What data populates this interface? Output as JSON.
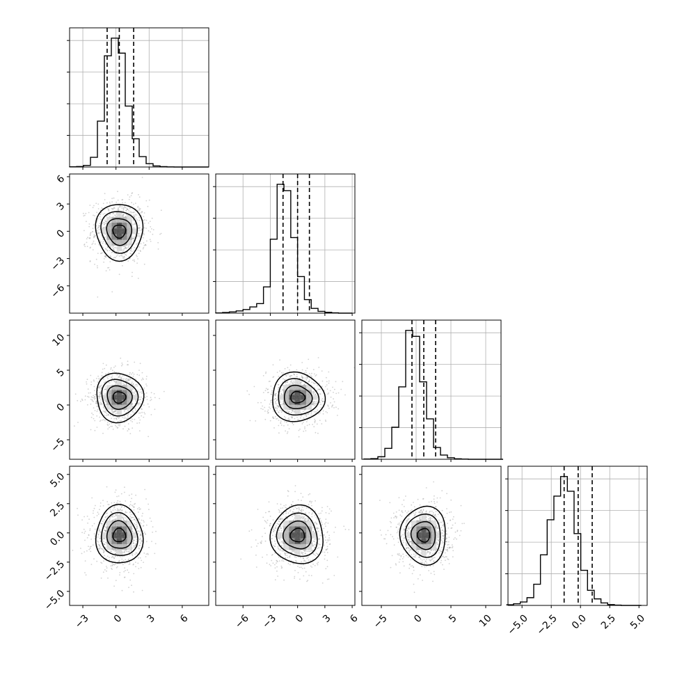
{
  "chart_data": {
    "type": "corner",
    "description_note": "",
    "variables": [
      {
        "histogram": {
          "bin_edges_range": [
            -4.2,
            8.4
          ],
          "bin_count": 20,
          "counts": [
            2,
            5,
            18,
            110,
            520,
            1260,
            1460,
            1290,
            690,
            320,
            118,
            38,
            12,
            4,
            1,
            0,
            0,
            0,
            0,
            0
          ],
          "quantiles": [
            -0.8,
            0.3,
            1.6
          ]
        },
        "xlim": [
          -4.2,
          8.4
        ],
        "xticks": [
          -3,
          0,
          3,
          6
        ],
        "xtick_labels": [
          "−3",
          "0",
          "3",
          "6"
        ]
      },
      {
        "histogram": {
          "bin_edges_range": [
            -9.0,
            6.0
          ],
          "bin_count": 20,
          "counts": [
            3,
            8,
            16,
            28,
            45,
            78,
            120,
            330,
            930,
            1620,
            1540,
            950,
            460,
            170,
            60,
            22,
            10,
            4,
            0,
            0
          ],
          "quantiles": [
            -1.6,
            0.0,
            1.3
          ]
        },
        "ylim": [
          -9.0,
          6.3
        ],
        "xticks": [
          -6,
          -3,
          0,
          3,
          6
        ],
        "xtick_labels": [
          "−6",
          "−3",
          "0",
          "3",
          "6"
        ],
        "yticks": [
          -6,
          -3,
          0,
          3,
          6
        ],
        "ytick_labels": [
          "−6",
          "−3",
          "0",
          "3",
          "6"
        ]
      },
      {
        "histogram": {
          "bin_edges_range": [
            -7.5,
            12.5
          ],
          "bin_count": 20,
          "counts": [
            3,
            8,
            30,
            130,
            380,
            860,
            1530,
            1460,
            920,
            480,
            140,
            50,
            18,
            6,
            2,
            0,
            0,
            0,
            0,
            0
          ],
          "quantiles": [
            -0.6,
            1.1,
            2.8
          ]
        },
        "ylim": [
          -7.8,
          12.2
        ],
        "xticks": [
          -5,
          0,
          5,
          10
        ],
        "xtick_labels": [
          "−5",
          "0",
          "5",
          "10"
        ],
        "yticks": [
          -5,
          0,
          5,
          10
        ],
        "ytick_labels": [
          "−5",
          "0",
          "5",
          "10"
        ]
      },
      {
        "histogram": {
          "bin_edges_range": [
            -6.3,
            5.2
          ],
          "bin_count": 20,
          "counts": [
            8,
            20,
            42,
            95,
            260,
            620,
            1050,
            1340,
            1580,
            1400,
            880,
            430,
            185,
            80,
            30,
            10,
            4,
            0,
            0,
            0
          ],
          "quantiles": [
            -1.4,
            -0.2,
            1.0
          ]
        },
        "ylim": [
          -6.2,
          5.7
        ],
        "xticks": [
          -5.0,
          -2.5,
          0.0,
          2.5,
          5.0
        ],
        "xtick_labels": [
          "−5.0",
          "−2.5",
          "0.0",
          "2.5",
          "5.0"
        ],
        "yticks": [
          -5.0,
          -2.5,
          0.0,
          2.5,
          5.0
        ],
        "ytick_labels": [
          "−5.0",
          "−2.5",
          "0.0",
          "2.5",
          "5.0"
        ]
      }
    ],
    "pair_panels": [
      {
        "x_var": 0,
        "y_var": 1,
        "center": [
          0.3,
          0.0
        ],
        "sigma": [
          1.1,
          1.5
        ]
      },
      {
        "x_var": 0,
        "y_var": 2,
        "center": [
          0.3,
          1.1
        ],
        "sigma": [
          1.1,
          1.7
        ]
      },
      {
        "x_var": 1,
        "y_var": 2,
        "center": [
          0.0,
          1.1
        ],
        "sigma": [
          1.5,
          1.7
        ]
      },
      {
        "x_var": 0,
        "y_var": 3,
        "center": [
          0.3,
          -0.2
        ],
        "sigma": [
          1.1,
          1.2
        ]
      },
      {
        "x_var": 1,
        "y_var": 3,
        "center": [
          0.0,
          -0.2
        ],
        "sigma": [
          1.5,
          1.2
        ]
      },
      {
        "x_var": 2,
        "y_var": 3,
        "center": [
          1.1,
          -0.2
        ],
        "sigma": [
          1.7,
          1.2
        ]
      }
    ],
    "contour_levels_sigma": [
      0.5,
      1.0,
      1.5,
      2.0
    ],
    "grid": true,
    "title": "",
    "legend": "none"
  },
  "colors": {
    "histogram": "#000000",
    "quantile_line": "#000000",
    "contour": "#000000",
    "points": "#9a9a9a",
    "grid": "#b0b0b0",
    "frame": "#000000"
  }
}
